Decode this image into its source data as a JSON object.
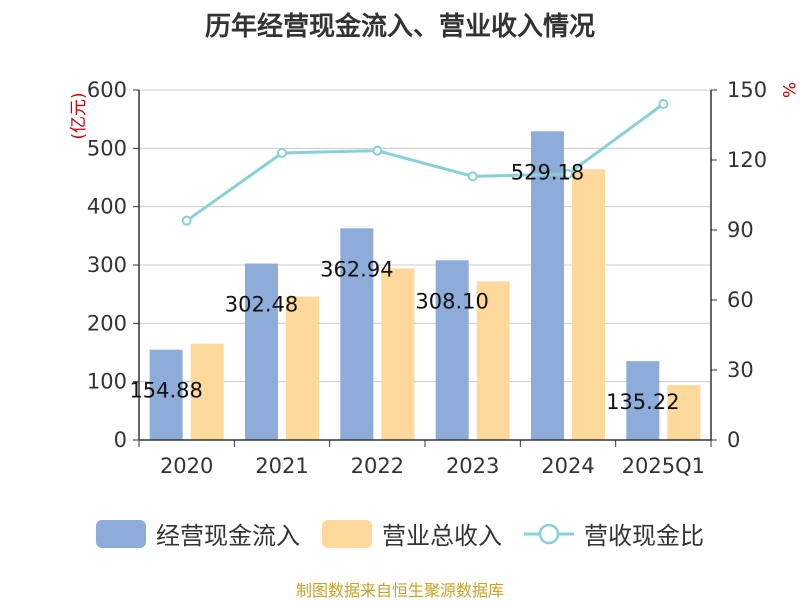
{
  "colors": {
    "operating_cash_inflow": "#8eacd9",
    "total_revenue": "#ffd89b",
    "ratio_line": "#8ad0d8",
    "unit_label": "#cc0000",
    "source": "#c9a227",
    "grid": "#cccccc",
    "axis": "#333333"
  },
  "chart_data": {
    "type": "bar",
    "title": "历年经营现金流入、营业收入情况",
    "categories": [
      "2020",
      "2021",
      "2022",
      "2023",
      "2024",
      "2025Q1"
    ],
    "y_left": {
      "label": "(亿元)",
      "range": [
        0,
        600
      ],
      "ticks": [
        "0",
        "100",
        "200",
        "300",
        "400",
        "500",
        "600"
      ]
    },
    "y_right": {
      "label": "%",
      "range": [
        0,
        150
      ],
      "ticks": [
        "0",
        "30",
        "60",
        "90",
        "120",
        "150"
      ]
    },
    "grid": true,
    "legend_position": "bottom",
    "series": [
      {
        "name": "经营现金流入",
        "type": "bar",
        "axis": "left",
        "values": [
          154.88,
          302.48,
          362.94,
          308.1,
          529.18,
          135.22
        ],
        "labels": [
          "154.88",
          "302.48",
          "362.94",
          "308.10",
          "529.18",
          "135.22"
        ]
      },
      {
        "name": "营业总收入",
        "type": "bar",
        "axis": "left",
        "values": [
          165,
          246,
          294,
          272,
          464,
          94
        ]
      },
      {
        "name": "营收现金比",
        "type": "line",
        "axis": "right",
        "values": [
          94,
          123,
          124,
          113,
          114,
          144
        ]
      }
    ]
  },
  "source_text": "制图数据来自恒生聚源数据库"
}
